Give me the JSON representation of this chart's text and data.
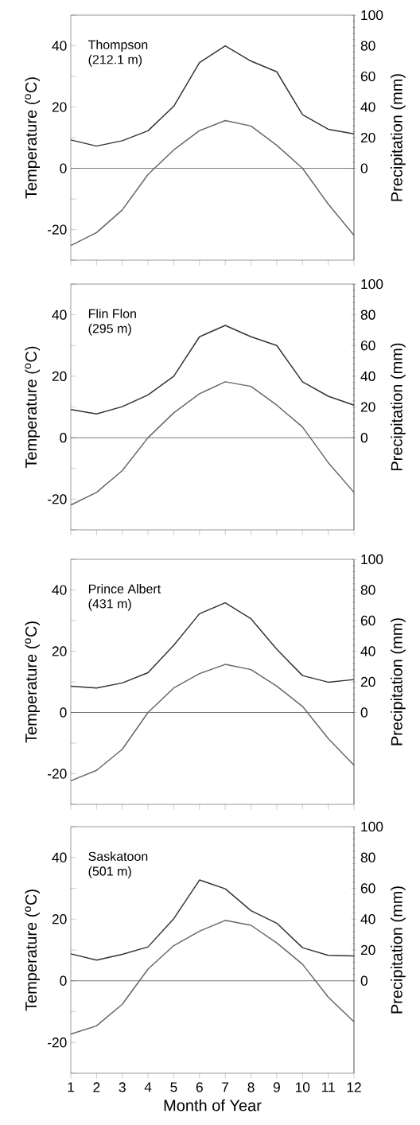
{
  "chart_data": [
    {
      "type": "line",
      "x": [
        1,
        2,
        3,
        4,
        5,
        6,
        7,
        8,
        9,
        10,
        11,
        12
      ],
      "xlim": [
        1,
        12
      ],
      "xticks": [
        1,
        2,
        3,
        4,
        5,
        6,
        7,
        8,
        9,
        10,
        11,
        12
      ],
      "ylim": [
        -30,
        50
      ],
      "yticks": [
        {
          "value": -30,
          "label": null
        },
        -20,
        {
          "value": -10,
          "label": null
        },
        0,
        {
          "value": 10,
          "label": null
        },
        20,
        {
          "value": 30,
          "label": null
        },
        40,
        {
          "value": 50,
          "label": null
        }
      ],
      "y2lim": [
        -60,
        100
      ],
      "y2ticks": [
        0,
        20,
        40,
        60,
        80,
        100
      ],
      "ylabel": "Temperature ($^{o}$C)",
      "y2label": "Precipitation (mm)",
      "tick_labels": "y",
      "annotations": [
        "Thompson",
        "(212.1 m)"
      ],
      "ref_lines": [
        {
          "axis": "y",
          "value": 0,
          "color": "#555555"
        }
      ],
      "series": [
        {
          "color": "#333333",
          "axis": "y2",
          "values": [
            18.5,
            14.5,
            18,
            24.5,
            40.5,
            69,
            80,
            70,
            63,
            35,
            25.5,
            22.5
          ]
        },
        {
          "color": "#666666",
          "values": [
            -25.2,
            -21,
            -13.6,
            -2,
            6,
            12.3,
            15.6,
            13.8,
            7.5,
            0,
            -11.7,
            -21.9
          ]
        }
      ]
    },
    {
      "type": "line",
      "x": [
        1,
        2,
        3,
        4,
        5,
        6,
        7,
        8,
        9,
        10,
        11,
        12
      ],
      "xlim": [
        1,
        12
      ],
      "xticks": [
        1,
        2,
        3,
        4,
        5,
        6,
        7,
        8,
        9,
        10,
        11,
        12
      ],
      "ylim": [
        -30,
        50
      ],
      "yticks": [
        {
          "value": -30,
          "label": null
        },
        -20,
        {
          "value": -10,
          "label": null
        },
        0,
        {
          "value": 10,
          "label": null
        },
        20,
        {
          "value": 30,
          "label": null
        },
        40,
        {
          "value": 50,
          "label": null
        }
      ],
      "y2lim": [
        -60,
        100
      ],
      "y2ticks": [
        0,
        20,
        40,
        60,
        80,
        100
      ],
      "ylabel": "Temperature ($^{o}$C)",
      "y2label": "Precipitation (mm)",
      "tick_labels": "y",
      "annotations": [
        "Flin Flon",
        "(295 m)"
      ],
      "ref_lines": [
        {
          "axis": "y",
          "value": 0,
          "color": "#555555"
        }
      ],
      "series": [
        {
          "color": "#333333",
          "axis": "y2",
          "values": [
            18.3,
            15.5,
            20.2,
            27.8,
            40,
            65.7,
            73.1,
            65.7,
            60,
            36.4,
            27,
            21.2
          ]
        },
        {
          "color": "#666666",
          "values": [
            -21.9,
            -17.8,
            -10.7,
            0,
            8.1,
            14.3,
            18.2,
            16.7,
            10.6,
            3.5,
            -8.1,
            -17.8
          ]
        }
      ]
    },
    {
      "type": "line",
      "x": [
        1,
        2,
        3,
        4,
        5,
        6,
        7,
        8,
        9,
        10,
        11,
        12
      ],
      "xlim": [
        1,
        12
      ],
      "xticks": [
        1,
        2,
        3,
        4,
        5,
        6,
        7,
        8,
        9,
        10,
        11,
        12
      ],
      "ylim": [
        -30,
        50
      ],
      "yticks": [
        {
          "value": -30,
          "label": null
        },
        -20,
        {
          "value": -10,
          "label": null
        },
        0,
        {
          "value": 10,
          "label": null
        },
        20,
        {
          "value": 30,
          "label": null
        },
        40,
        {
          "value": 50,
          "label": null
        }
      ],
      "y2lim": [
        -60,
        100
      ],
      "y2ticks": [
        0,
        20,
        40,
        60,
        80,
        100
      ],
      "ylabel": "Temperature ($^{o}$C)",
      "y2label": "Precipitation (mm)",
      "tick_labels": "y",
      "annotations": [
        "Prince Albert",
        "(431 m)"
      ],
      "ref_lines": [
        {
          "axis": "y",
          "value": 0,
          "color": "#555555"
        }
      ],
      "series": [
        {
          "color": "#333333",
          "axis": "y2",
          "values": [
            17.2,
            16,
            19.3,
            26,
            43.9,
            64.5,
            71.6,
            61.2,
            41.3,
            24.1,
            19.8,
            21.5
          ]
        },
        {
          "color": "#666666",
          "values": [
            -22.3,
            -18.9,
            -12,
            0,
            8,
            12.7,
            15.7,
            14,
            8.6,
            2,
            -8.5,
            -17.2
          ]
        }
      ]
    },
    {
      "type": "line",
      "x": [
        1,
        2,
        3,
        4,
        5,
        6,
        7,
        8,
        9,
        10,
        11,
        12
      ],
      "xlim": [
        1,
        12
      ],
      "xticks": [
        1,
        2,
        3,
        4,
        5,
        6,
        7,
        8,
        9,
        10,
        11,
        12
      ],
      "ylim": [
        -30,
        50
      ],
      "yticks": [
        {
          "value": -30,
          "label": null
        },
        -20,
        {
          "value": -10,
          "label": null
        },
        0,
        {
          "value": 10,
          "label": null
        },
        20,
        {
          "value": 30,
          "label": null
        },
        40,
        {
          "value": 50,
          "label": null
        }
      ],
      "y2lim": [
        -60,
        100
      ],
      "y2ticks": [
        0,
        20,
        40,
        60,
        80,
        100
      ],
      "xlabel": "Month of Year",
      "ylabel": "Temperature ($^{o}$C)",
      "y2label": "Precipitation (mm)",
      "annotations": [
        "Saskatoon",
        "(501 m)"
      ],
      "ref_lines": [
        {
          "axis": "y",
          "value": 0,
          "color": "#555555"
        }
      ],
      "series": [
        {
          "color": "#333333",
          "axis": "y2",
          "values": [
            17.5,
            13.4,
            17.2,
            22,
            40.3,
            65.4,
            59.7,
            45.5,
            37.4,
            21.5,
            16.5,
            16.1
          ]
        },
        {
          "color": "#666666",
          "values": [
            -17.3,
            -14.6,
            -7.6,
            3.8,
            11.4,
            16.1,
            19.6,
            18,
            12.3,
            5.4,
            -5.3,
            -13.3
          ]
        }
      ]
    }
  ]
}
